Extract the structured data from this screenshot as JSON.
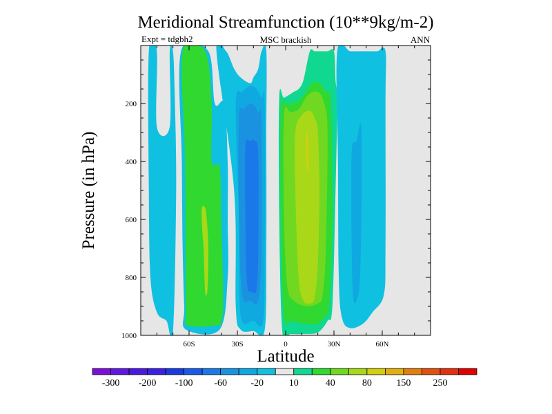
{
  "chart_data": {
    "type": "contour",
    "title": "Meridional Streamfunction (10**9kg/m-2)",
    "subtitle_left": "Expt = tdgbh2",
    "subtitle_center": "MSC brackish",
    "subtitle_right": "ANN",
    "xlabel": "Latitude",
    "ylabel": "Pressure (in hPa)",
    "xlim": [
      -90,
      90
    ],
    "ylim": [
      1000,
      0
    ],
    "x_ticks": [
      {
        "value": -60,
        "label": "60S"
      },
      {
        "value": -30,
        "label": "30S"
      },
      {
        "value": 0,
        "label": "0"
      },
      {
        "value": 30,
        "label": "30N"
      },
      {
        "value": 60,
        "label": "60N"
      }
    ],
    "y_ticks": [
      {
        "value": 200,
        "label": "200"
      },
      {
        "value": 400,
        "label": "400"
      },
      {
        "value": 600,
        "label": "600"
      },
      {
        "value": 800,
        "label": "800"
      },
      {
        "value": 1000,
        "label": "1000"
      }
    ],
    "missing_color": "#e6e6e6",
    "colorbar": {
      "colors": [
        "#7a10d8",
        "#6018e0",
        "#4a18e0",
        "#3a20e0",
        "#1a3ae0",
        "#1a5ae8",
        "#1a78e8",
        "#1a92e0",
        "#10a8e0",
        "#10c0e0",
        "#e6e6e6",
        "#10d890",
        "#30d830",
        "#70d820",
        "#a8d818",
        "#d0d010",
        "#e0b010",
        "#e08010",
        "#e05010",
        "#e03010",
        "#e00000"
      ],
      "labels": [
        {
          "after_box": 1,
          "text": "-300"
        },
        {
          "after_box": 3,
          "text": "-200"
        },
        {
          "after_box": 5,
          "text": "-100"
        },
        {
          "after_box": 7,
          "text": "-60"
        },
        {
          "after_box": 9,
          "text": "-20"
        },
        {
          "after_box": 11,
          "text": "10"
        },
        {
          "after_box": 13,
          "text": "40"
        },
        {
          "after_box": 15,
          "text": "80"
        },
        {
          "after_box": 17,
          "text": "150"
        },
        {
          "after_box": 19,
          "text": "250"
        }
      ]
    },
    "regions": [
      {
        "name": "sh-polar-cell",
        "color": "#10c0e0",
        "x": [
          -85,
          -80,
          -80,
          -72,
          -72,
          -70,
          -69,
          -68,
          -70,
          -74,
          -80,
          -84,
          -85
        ],
        "y": [
          20,
          20,
          280,
          280,
          20,
          20,
          150,
          500,
          990,
          950,
          920,
          800,
          500
        ]
      },
      {
        "name": "sh-ferrel-outer",
        "color": "#10c0e0",
        "x": [
          -65,
          -48,
          -44,
          -38,
          -36,
          -36,
          -36,
          -41,
          -62,
          -63,
          -64,
          -64.5
        ],
        "y": [
          20,
          20,
          200,
          200,
          400,
          600,
          800,
          980,
          980,
          900,
          700,
          400
        ]
      },
      {
        "name": "sh-ferrel-green",
        "color": "#30d830",
        "x": [
          -64,
          -50,
          -46,
          -46,
          -41,
          -40,
          -39,
          -39,
          -40,
          -41.5,
          -61,
          -62,
          -62.5
        ],
        "y": [
          20,
          20,
          200,
          400,
          420,
          600,
          800,
          920,
          950,
          965,
          965,
          900,
          400
        ]
      },
      {
        "name": "sh-ferrel-lime",
        "color": "#a8d818",
        "x": [
          -52,
          -50,
          -49,
          -48,
          -48.5,
          -50,
          -51,
          -52
        ],
        "y": [
          560,
          560,
          600,
          700,
          840,
          850,
          700,
          620
        ]
      },
      {
        "name": "sh-hadley-light",
        "color": "#10c0e0",
        "x": [
          -43,
          -37,
          -32,
          -28,
          -22,
          -20,
          -17,
          -15,
          -12,
          -12,
          -12,
          -13,
          -20,
          -28,
          -31,
          -32
        ],
        "y": [
          20,
          20,
          80,
          110,
          130,
          110,
          80,
          20,
          20,
          300,
          700,
          980,
          985,
          980,
          900,
          500
        ]
      },
      {
        "name": "sh-hadley-mid",
        "color": "#10a8e0",
        "x": [
          -31,
          -27,
          -22,
          -18,
          -15,
          -13,
          -13,
          -14,
          -20,
          -28,
          -29
        ],
        "y": [
          200,
          160,
          140,
          150,
          180,
          200,
          700,
          950,
          950,
          930,
          600
        ]
      },
      {
        "name": "sh-hadley-dark",
        "color": "#1a92e0",
        "x": [
          -29,
          -26,
          -21,
          -17,
          -15,
          -15,
          -17,
          -22,
          -27,
          -29
        ],
        "y": [
          250,
          220,
          200,
          230,
          260,
          700,
          880,
          880,
          860,
          600
        ]
      },
      {
        "name": "sh-hadley-core",
        "color": "#1a78e8",
        "x": [
          -25,
          -22,
          -19,
          -17,
          -17,
          -18,
          -21,
          -24,
          -25
        ],
        "y": [
          350,
          330,
          330,
          380,
          700,
          840,
          850,
          820,
          600
        ]
      },
      {
        "name": "nh-hadley-green",
        "color": "#10d890",
        "x": [
          -4,
          -1,
          5,
          8,
          11,
          15,
          18,
          22,
          26,
          30,
          31,
          32,
          31,
          29,
          26,
          20,
          12,
          3,
          -2,
          -4
        ],
        "y": [
          180,
          180,
          160,
          150,
          120,
          20,
          20,
          20,
          20,
          20,
          120,
          200,
          500,
          900,
          950,
          990,
          995,
          995,
          990,
          600
        ]
      },
      {
        "name": "nh-hadley-bright",
        "color": "#30d830",
        "x": [
          -3,
          0,
          4,
          10,
          16,
          21,
          25,
          28,
          29,
          27,
          25,
          20,
          12,
          4,
          -1,
          -3
        ],
        "y": [
          220,
          200,
          200,
          180,
          130,
          130,
          160,
          200,
          600,
          900,
          930,
          960,
          960,
          950,
          930,
          600
        ]
      },
      {
        "name": "nh-hadley-yelgrn",
        "color": "#70d820",
        "x": [
          -1,
          3,
          8,
          14,
          20,
          24,
          26,
          25,
          23,
          20,
          13,
          5,
          1,
          -1
        ],
        "y": [
          240,
          230,
          220,
          170,
          160,
          200,
          300,
          700,
          860,
          890,
          900,
          880,
          830,
          600
        ]
      },
      {
        "name": "nh-hadley-lime",
        "color": "#a8d818",
        "x": [
          6,
          10,
          15,
          18,
          20,
          21,
          20,
          18,
          15,
          11,
          8,
          6
        ],
        "y": [
          300,
          240,
          225,
          250,
          300,
          500,
          750,
          870,
          890,
          880,
          800,
          500
        ]
      },
      {
        "name": "nh-hadley-max",
        "color": "#d0d010",
        "x": [
          12.8,
          13.5,
          14,
          14.2,
          13.5,
          12.8,
          12.7
        ],
        "y": [
          300,
          305,
          330,
          420,
          430,
          400,
          330
        ]
      },
      {
        "name": "nh-ferrel-outer",
        "color": "#10c0e0",
        "x": [
          32,
          40,
          45,
          52,
          57,
          62,
          62,
          62,
          61,
          54,
          48,
          40,
          35,
          33,
          32.5
        ],
        "y": [
          20,
          20,
          20,
          20,
          20,
          20,
          200,
          700,
          860,
          920,
          960,
          975,
          940,
          800,
          400
        ]
      },
      {
        "name": "nh-ferrel-inner",
        "color": "#10a8e0",
        "x": [
          41,
          44,
          47,
          47,
          46,
          44,
          42,
          41
        ],
        "y": [
          370,
          330,
          280,
          600,
          820,
          880,
          870,
          700
        ]
      }
    ]
  },
  "notes": {
    "grid": "off",
    "legend": "colorbar-bottom"
  }
}
